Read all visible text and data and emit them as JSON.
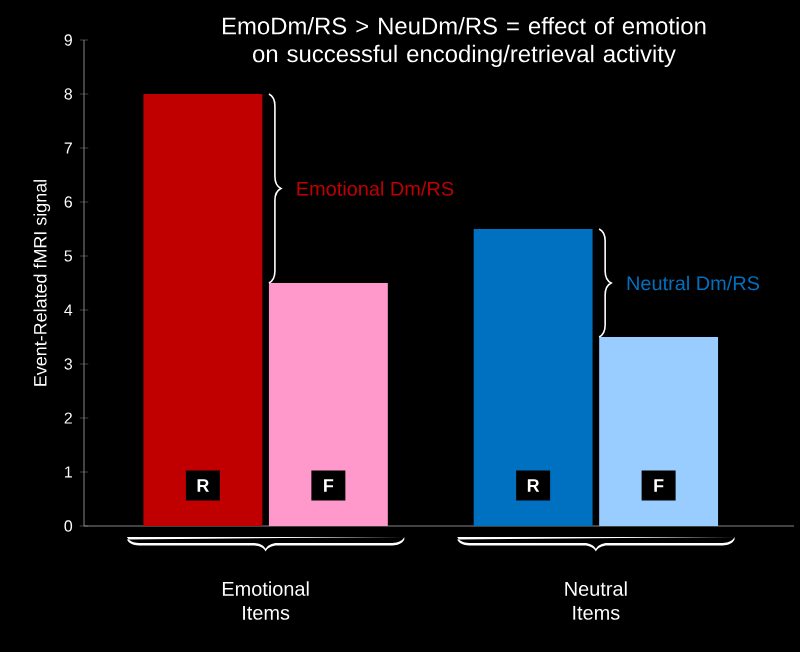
{
  "chart_data": {
    "type": "bar",
    "title": "EmoDm/RS > NeuDm/RS = effect of emotion on successful encoding/retrieval activity",
    "ylabel": "Event-Related fMRI signal",
    "categories": [
      "Emotional Items",
      "Neutral Items"
    ],
    "series": [
      {
        "name": "R",
        "colors": [
          "#c00000",
          "#0070c0"
        ],
        "values": [
          8,
          5.5
        ]
      },
      {
        "name": "F",
        "colors": [
          "#ff99cc",
          "#99ccff"
        ],
        "values": [
          4.5,
          3.5
        ]
      }
    ],
    "ylim": [
      0,
      9
    ],
    "yticks": [
      0,
      1,
      2,
      3,
      4,
      5,
      6,
      7,
      8,
      9
    ],
    "annotations": [
      "Emotional Dm/RS",
      "Neutral Dm/RS"
    ]
  }
}
